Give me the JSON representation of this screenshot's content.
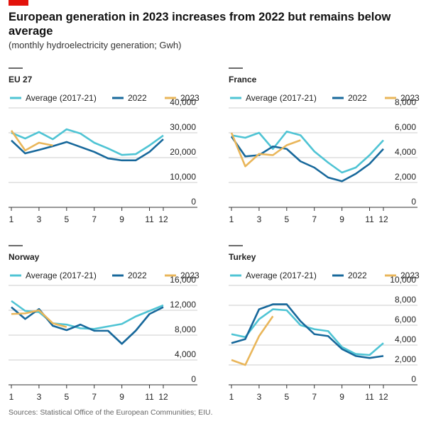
{
  "title": "European generation in 2023 increases from 2022 but remains below average",
  "subtitle": "(monthly hydroelectricity generation; Gwh)",
  "source": "Sources: Statistical Office of the European Communities; EIU.",
  "chart_data": [
    {
      "type": "line",
      "title": "EU 27",
      "x": [
        1,
        2,
        3,
        4,
        5,
        6,
        7,
        8,
        9,
        10,
        11,
        12
      ],
      "xlim": [
        1,
        12
      ],
      "xticks": [
        1,
        3,
        5,
        7,
        9,
        11,
        12
      ],
      "ylim": [
        0,
        40000
      ],
      "yticks": [
        0,
        {
          "value": 10000,
          "label": "10,000"
        },
        {
          "value": 20000,
          "label": "20,000"
        },
        {
          "value": 30000,
          "label": "30,000"
        },
        {
          "value": 40000,
          "label": "40,000"
        }
      ],
      "grid": true,
      "series": [
        {
          "name": "Average (2017-21)",
          "color": "#4fc4d4",
          "values": [
            30000,
            27700,
            30300,
            27400,
            31400,
            29700,
            26000,
            23700,
            21100,
            21400,
            24900,
            28900
          ]
        },
        {
          "name": "2022",
          "color": "#17689b",
          "values": [
            26900,
            21700,
            23100,
            24600,
            26300,
            24300,
            22300,
            19700,
            18900,
            18900,
            22300,
            27400
          ]
        },
        {
          "name": "2023",
          "color": "#e9b65a",
          "values": [
            30900,
            22900,
            26000,
            24900,
            null,
            null,
            null,
            null,
            null,
            null,
            null,
            null
          ]
        }
      ]
    },
    {
      "type": "line",
      "title": "France",
      "x": [
        1,
        2,
        3,
        4,
        5,
        6,
        7,
        8,
        9,
        10,
        11,
        12
      ],
      "xlim": [
        1,
        12
      ],
      "xticks": [
        1,
        3,
        5,
        7,
        9,
        11,
        12
      ],
      "ylim": [
        0,
        8000
      ],
      "yticks": [
        0,
        {
          "value": 2000,
          "label": "2,000"
        },
        {
          "value": 4000,
          "label": "4,000"
        },
        {
          "value": 6000,
          "label": "6,000"
        },
        {
          "value": 8000,
          "label": "8,000"
        }
      ],
      "grid": true,
      "series": [
        {
          "name": "Average (2017-21)",
          "color": "#4fc4d4",
          "values": [
            5800,
            5600,
            6000,
            4700,
            6100,
            5800,
            4500,
            3600,
            2800,
            3200,
            4200,
            5400
          ]
        },
        {
          "name": "2022",
          "color": "#17689b",
          "values": [
            5700,
            4100,
            4200,
            4900,
            4700,
            3700,
            3200,
            2400,
            2100,
            2700,
            3500,
            4700
          ]
        },
        {
          "name": "2023",
          "color": "#e9b65a",
          "values": [
            6000,
            3300,
            4300,
            4200,
            5000,
            5400,
            null,
            null,
            null,
            null,
            null,
            null
          ]
        }
      ]
    },
    {
      "type": "line",
      "title": "Norway",
      "x": [
        1,
        2,
        3,
        4,
        5,
        6,
        7,
        8,
        9,
        10,
        11,
        12
      ],
      "xlim": [
        1,
        12
      ],
      "xticks": [
        1,
        3,
        5,
        7,
        9,
        11,
        12
      ],
      "ylim": [
        0,
        16000
      ],
      "yticks": [
        0,
        {
          "value": 4000,
          "label": "4,000"
        },
        {
          "value": 8000,
          "label": "8,000"
        },
        {
          "value": 12000,
          "label": "12,000"
        },
        {
          "value": 16000,
          "label": "16,000"
        }
      ],
      "grid": true,
      "series": [
        {
          "name": "Average (2017-21)",
          "color": "#4fc4d4",
          "values": [
            13500,
            11900,
            11700,
            9900,
            9700,
            9100,
            9000,
            9400,
            9800,
            11000,
            11900,
            12800
          ]
        },
        {
          "name": "2022",
          "color": "#17689b",
          "values": [
            12500,
            10600,
            12200,
            9500,
            8800,
            9700,
            8700,
            8700,
            6600,
            8700,
            11400,
            12500
          ]
        },
        {
          "name": "2023",
          "color": "#e9b65a",
          "values": [
            11400,
            11500,
            12000,
            9900,
            9300,
            null,
            null,
            null,
            null,
            null,
            null,
            null
          ]
        }
      ]
    },
    {
      "type": "line",
      "title": "Turkey",
      "x": [
        1,
        2,
        3,
        4,
        5,
        6,
        7,
        8,
        9,
        10,
        11,
        12
      ],
      "xlim": [
        1,
        12
      ],
      "xticks": [
        1,
        3,
        5,
        7,
        9,
        11,
        12
      ],
      "ylim": [
        0,
        10000
      ],
      "yticks": [
        0,
        {
          "value": 2000,
          "label": "2,000"
        },
        {
          "value": 4000,
          "label": "4,000"
        },
        {
          "value": 6000,
          "label": "6,000"
        },
        {
          "value": 8000,
          "label": "8,000"
        },
        {
          "value": 10000,
          "label": "10,000"
        }
      ],
      "grid": true,
      "series": [
        {
          "name": "Average (2017-21)",
          "color": "#4fc4d4",
          "values": [
            5100,
            4800,
            6600,
            7600,
            7500,
            6000,
            5600,
            5400,
            3800,
            3100,
            3000,
            4200
          ]
        },
        {
          "name": "2022",
          "color": "#17689b",
          "values": [
            4200,
            4600,
            7600,
            8100,
            8100,
            6400,
            5100,
            4900,
            3600,
            2900,
            2700,
            2900
          ]
        },
        {
          "name": "2023",
          "color": "#e9b65a",
          "values": [
            2500,
            2000,
            4900,
            6900,
            null,
            null,
            null,
            null,
            null,
            null,
            null,
            null
          ]
        }
      ]
    }
  ]
}
